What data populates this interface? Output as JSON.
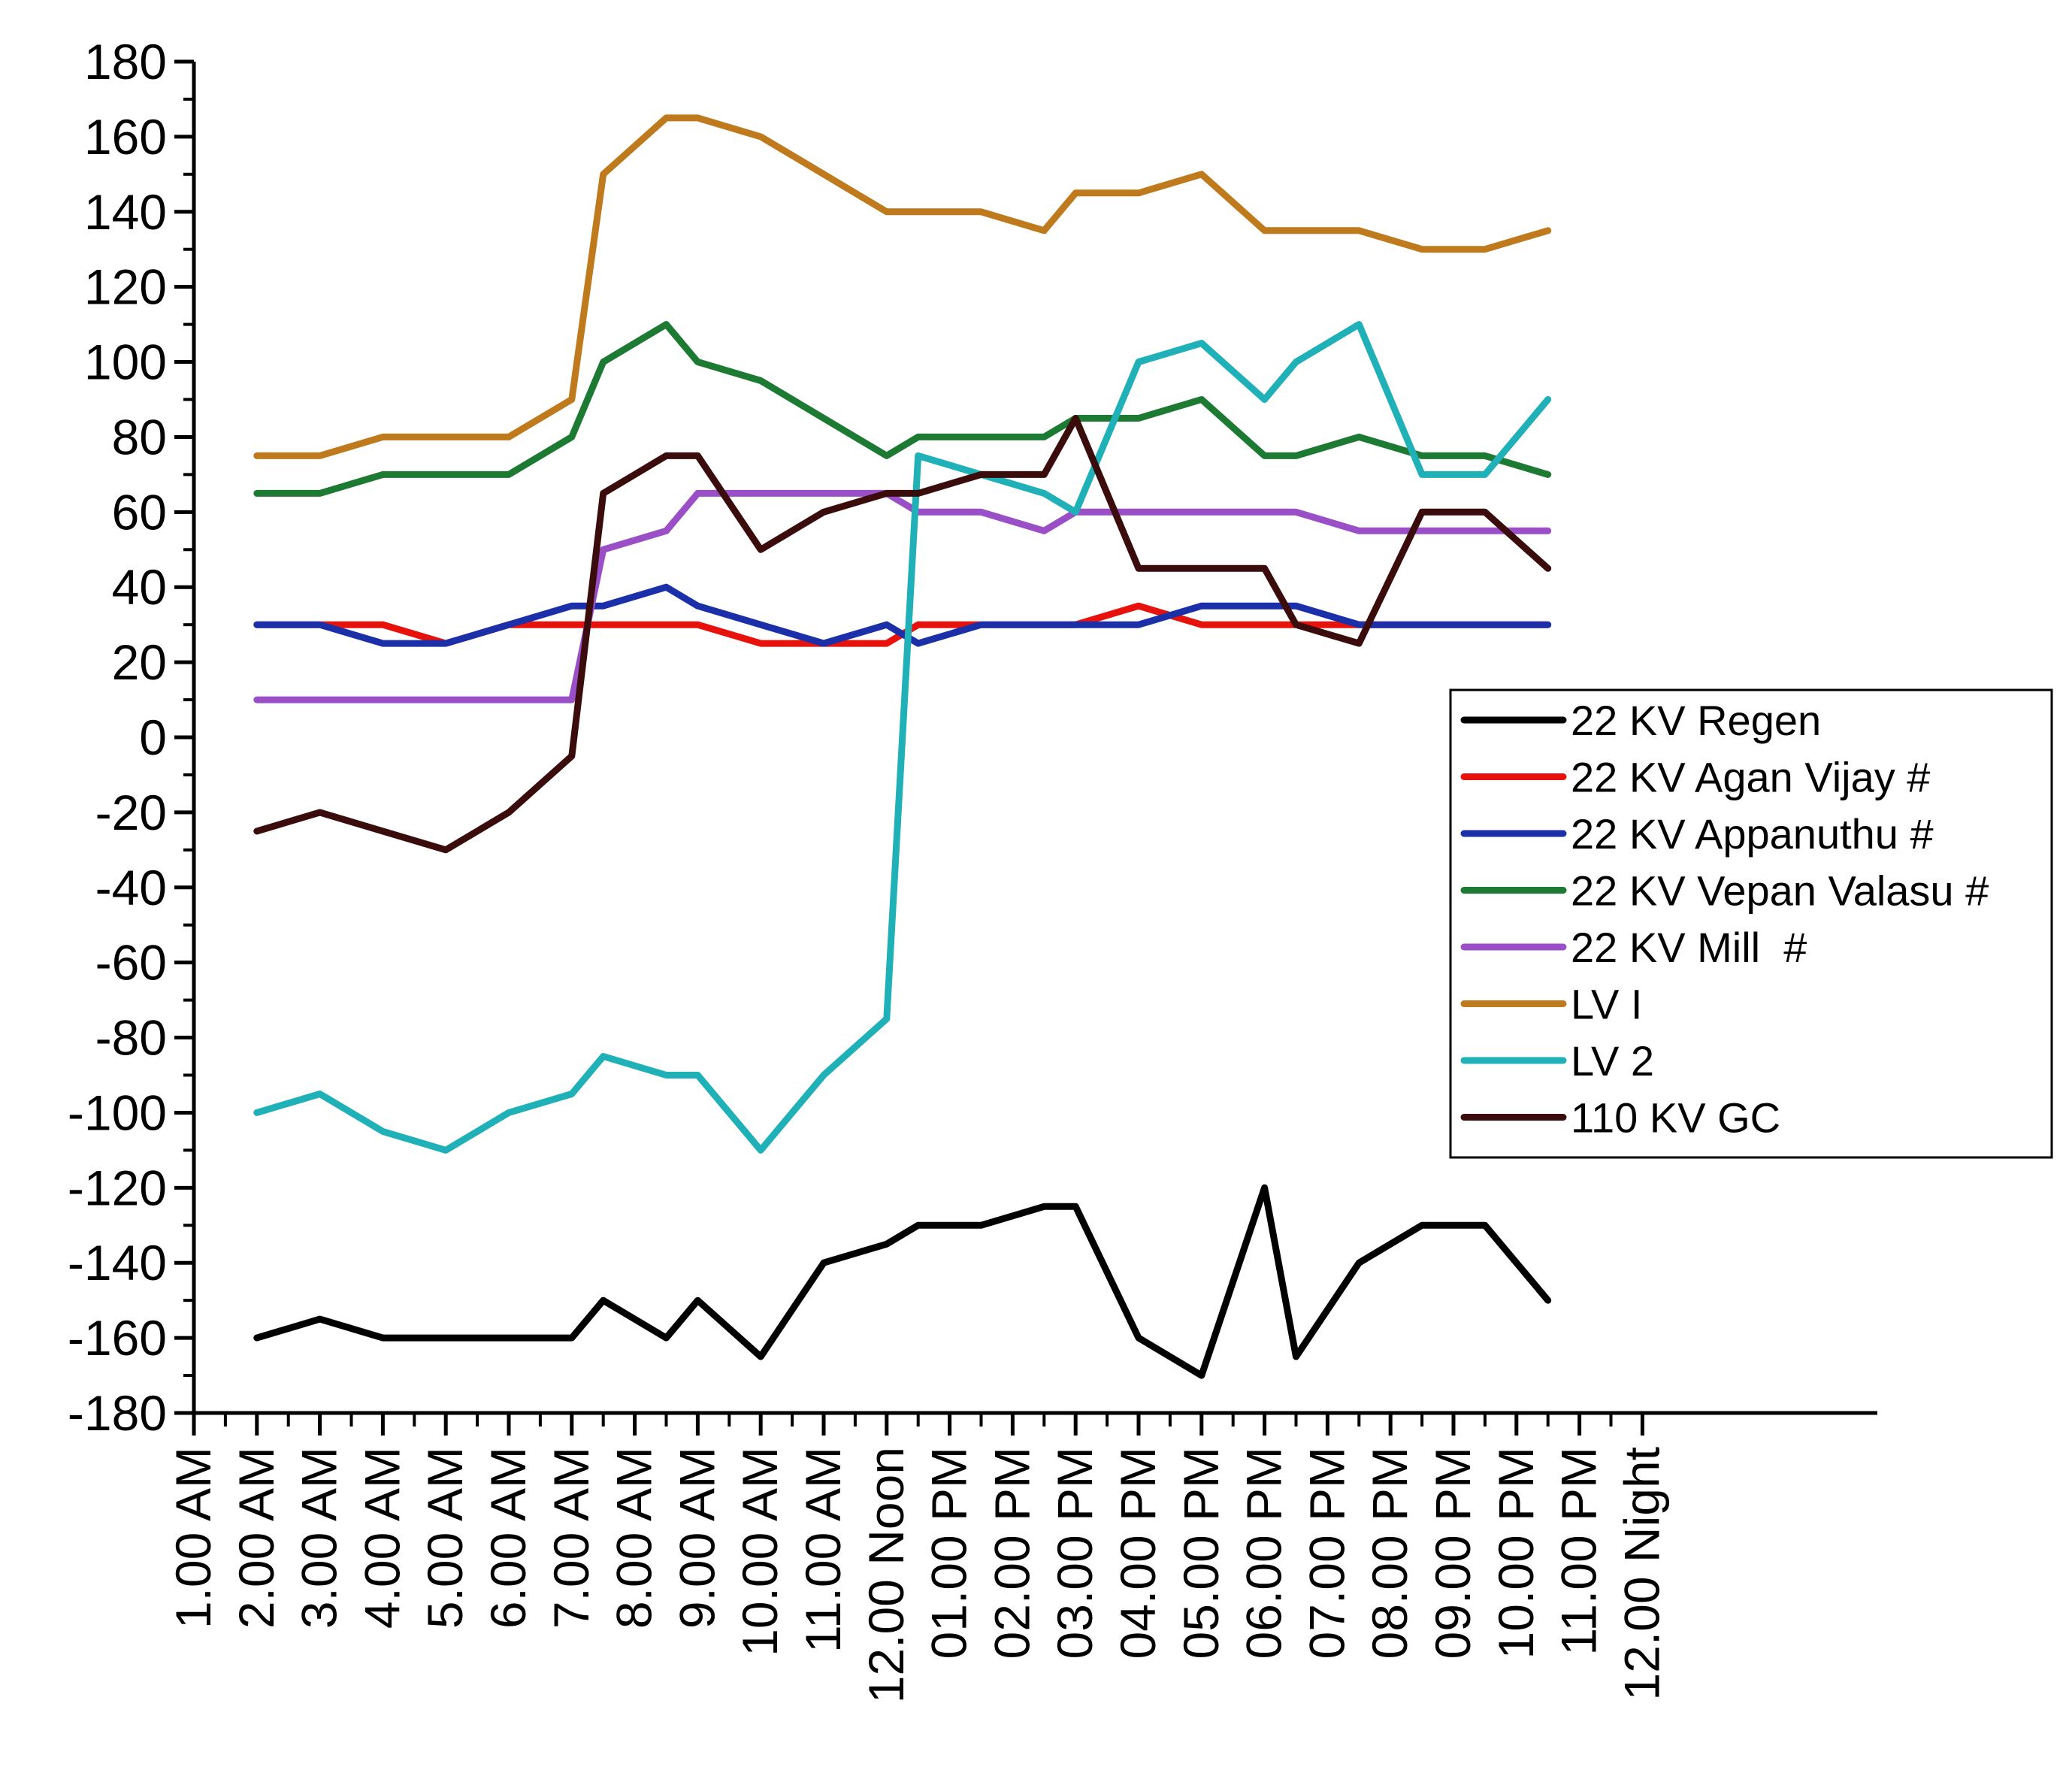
{
  "chart_data": {
    "type": "line",
    "title": "",
    "xlabel": "",
    "ylabel": "",
    "ylim": [
      -180,
      180
    ],
    "yticks": [
      180,
      160,
      140,
      120,
      100,
      80,
      60,
      40,
      20,
      0,
      -20,
      -40,
      -60,
      -80,
      -100,
      -120,
      -140,
      -160,
      -180
    ],
    "categories": [
      "1.00 AM",
      "2.00 AM",
      "3.00 AM",
      "4.00 AM",
      "5.00 AM",
      "6.00 AM",
      "7.00 AM",
      "8.00 AM",
      "9.00 AM",
      "10.00 AM",
      "11.00 AM",
      "12.00 Noon",
      "01.00 PM",
      "02.00 PM",
      "03.00 PM",
      "04.00 PM",
      "05.00 PM",
      "06.00 PM",
      "07.00 PM",
      "08.00 PM",
      "09.00 PM",
      "10.00 PM",
      "11.00 PM",
      "12.00 Night"
    ],
    "x": [
      2.0,
      3.0,
      4.0,
      5.0,
      6.0,
      7.0,
      7.5,
      8.5,
      9.0,
      10.0,
      11.0,
      12.0,
      12.5,
      13.5,
      14.5,
      15.0,
      16.0,
      17.0,
      18.0,
      18.5,
      19.5,
      20.5,
      21.5,
      22.5
    ],
    "legend_position": "right",
    "series": [
      {
        "name": "22 KV Regen",
        "color": "#000000",
        "values": [
          -160,
          -155,
          -160,
          -160,
          -160,
          -160,
          -150,
          -160,
          -150,
          -165,
          -140,
          -135,
          -130,
          -130,
          -125,
          -125,
          -160,
          -170,
          -120,
          -165,
          -140,
          -130,
          -130,
          -150
        ]
      },
      {
        "name": "22 KV Agan Vijay #",
        "color": "#e8120c",
        "values": [
          30,
          30,
          30,
          25,
          30,
          30,
          30,
          30,
          30,
          25,
          25,
          25,
          30,
          30,
          30,
          30,
          35,
          30,
          30,
          30,
          30,
          30,
          30,
          30
        ]
      },
      {
        "name": "22 KV Appanuthu #",
        "color": "#1a2fa8",
        "values": [
          30,
          30,
          25,
          25,
          30,
          35,
          35,
          40,
          35,
          30,
          25,
          30,
          25,
          30,
          30,
          30,
          30,
          35,
          35,
          35,
          30,
          30,
          30,
          30
        ]
      },
      {
        "name": "22 KV Vepan Valasu #",
        "color": "#1c7a33",
        "values": [
          65,
          65,
          70,
          70,
          70,
          80,
          100,
          110,
          100,
          95,
          85,
          75,
          80,
          80,
          80,
          85,
          85,
          90,
          75,
          75,
          80,
          75,
          75,
          70
        ]
      },
      {
        "name": "22 KV Mill  #",
        "color": "#9b4fc7",
        "values": [
          10,
          10,
          10,
          10,
          10,
          10,
          50,
          55,
          65,
          65,
          65,
          65,
          60,
          60,
          55,
          60,
          60,
          60,
          60,
          60,
          55,
          55,
          55,
          55
        ]
      },
      {
        "name": "LV I",
        "color": "#c07a1e",
        "values": [
          75,
          75,
          80,
          80,
          80,
          90,
          150,
          165,
          165,
          160,
          150,
          140,
          140,
          140,
          135,
          145,
          145,
          150,
          135,
          135,
          135,
          130,
          130,
          135
        ]
      },
      {
        "name": "LV 2",
        "color": "#1fb0b8",
        "values": [
          -100,
          -95,
          -105,
          -110,
          -100,
          -95,
          -85,
          -90,
          -90,
          -110,
          -90,
          -75,
          75,
          70,
          65,
          60,
          100,
          105,
          90,
          100,
          110,
          70,
          70,
          90
        ]
      },
      {
        "name": "110 KV GC",
        "color": "#3a0c0c",
        "values": [
          -25,
          -20,
          -25,
          -30,
          -20,
          -5,
          65,
          75,
          75,
          50,
          60,
          65,
          65,
          70,
          70,
          85,
          45,
          45,
          45,
          30,
          25,
          60,
          60,
          45
        ]
      }
    ]
  }
}
